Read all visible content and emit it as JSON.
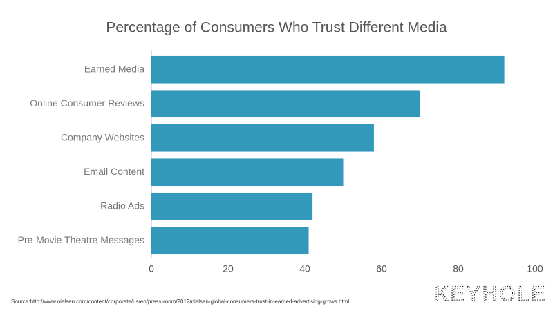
{
  "chart_data": {
    "type": "bar",
    "orientation": "horizontal",
    "title": "Percentage of Consumers Who Trust Different Media",
    "categories": [
      "Earned Media",
      "Online Consumer Reviews",
      "Company Websites",
      "Email Content",
      "Radio Ads",
      "Pre-Movie Theatre Messages"
    ],
    "values": [
      92,
      70,
      58,
      50,
      42,
      41
    ],
    "color": "#3399bb",
    "xlim": [
      0,
      100
    ],
    "xticks": [
      0,
      20,
      40,
      60,
      80,
      100
    ],
    "source": "Source:http://www.nielsen.com/content/corporate/us/en/press-room/2012/nielsen-global-consumers-trust-in-earned-advertising-grows.html",
    "logo": "KEYHOLE"
  }
}
